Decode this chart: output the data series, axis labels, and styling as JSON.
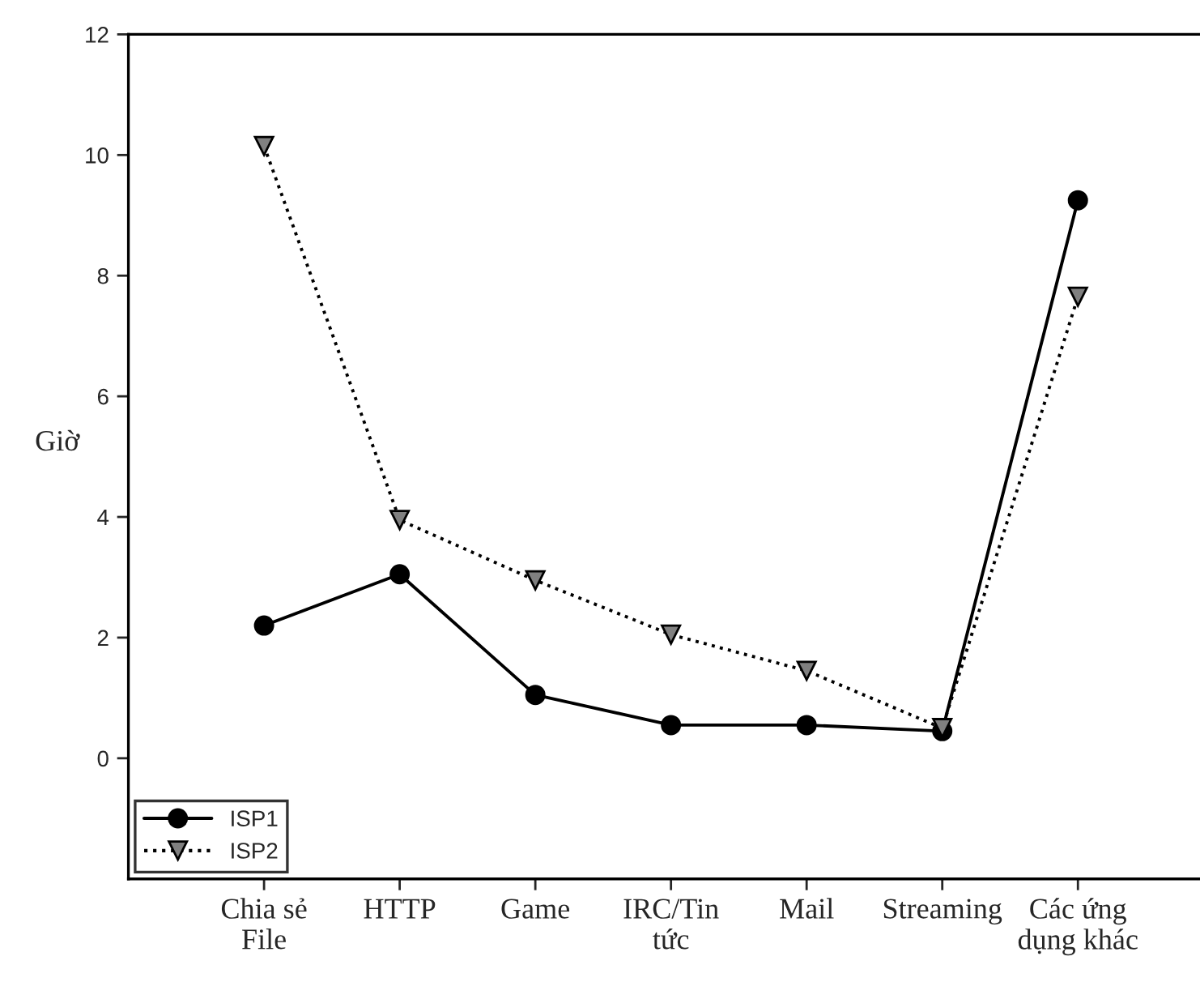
{
  "chart_data": {
    "type": "line",
    "ylabel": "Giờ",
    "categories": [
      "Chia sẻ\nFile",
      "HTTP",
      "Game",
      "IRC/Tin\ntức",
      "Mail",
      "Streaming",
      "Các ứng\ndụng khác"
    ],
    "series": [
      {
        "name": "ISP1",
        "color": "#000000",
        "marker": "circle",
        "line_style": "solid",
        "values": [
          2.2,
          3.05,
          1.05,
          0.55,
          0.55,
          0.45,
          9.25
        ]
      },
      {
        "name": "ISP2",
        "color": "#808080",
        "marker": "triangle",
        "line_style": "dotted",
        "values": [
          10.15,
          3.95,
          2.95,
          2.05,
          1.45,
          0.5,
          7.65
        ]
      }
    ],
    "ylim": [
      -2,
      12
    ],
    "yticks": [
      0,
      2,
      4,
      6,
      8,
      10,
      12
    ],
    "grid": false,
    "legend": "bottom left"
  }
}
